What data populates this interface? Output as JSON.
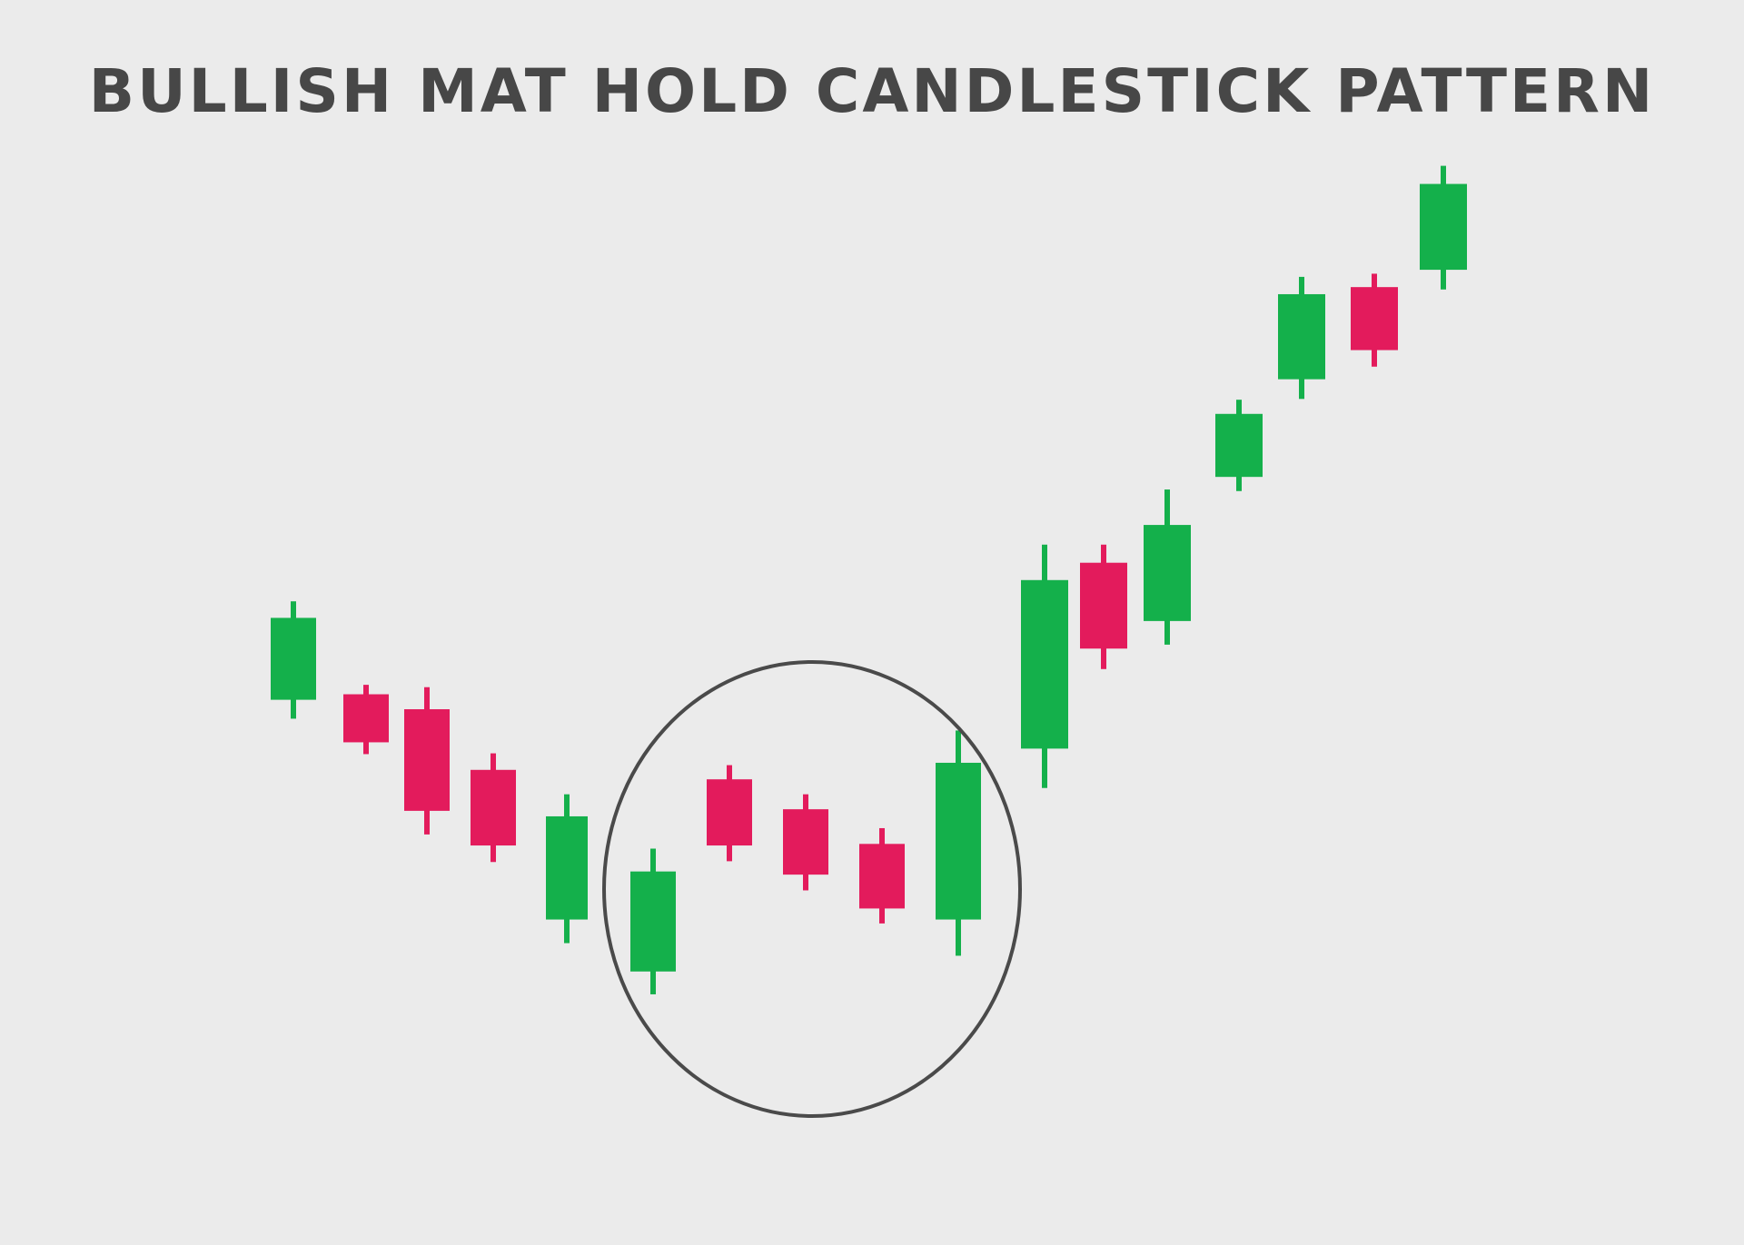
{
  "chart_data": {
    "type": "candlestick",
    "title": "BULLISH MAT HOLD CANDLESTICK PATTERN",
    "colors": {
      "bullish": "#14b04b",
      "bearish": "#e31b5c",
      "highlight": "#4a4a4a",
      "background": "#ebebeb"
    },
    "candles": [
      {
        "direction": "bullish",
        "open": 31.9,
        "close": 42.3,
        "high": 44.4,
        "low": 29.5
      },
      {
        "direction": "bearish",
        "open": 32.6,
        "close": 26.5,
        "high": 33.8,
        "low": 25.0
      },
      {
        "direction": "bearish",
        "open": 30.7,
        "close": 17.8,
        "high": 33.5,
        "low": 14.8
      },
      {
        "direction": "bearish",
        "open": 23.0,
        "close": 13.4,
        "high": 25.1,
        "low": 11.3
      },
      {
        "direction": "bullish",
        "open": 4.0,
        "close": 17.1,
        "high": 19.9,
        "low": 1.0
      },
      {
        "direction": "bullish",
        "open": -2.6,
        "close": 10.1,
        "high": 13.0,
        "low": -5.5
      },
      {
        "direction": "bearish",
        "open": 21.8,
        "close": 13.4,
        "high": 23.6,
        "low": 11.4
      },
      {
        "direction": "bearish",
        "open": 18.0,
        "close": 9.7,
        "high": 19.9,
        "low": 7.7
      },
      {
        "direction": "bearish",
        "open": 13.6,
        "close": 5.4,
        "high": 15.6,
        "low": 3.5
      },
      {
        "direction": "bullish",
        "open": 4.0,
        "close": 23.9,
        "high": 28.0,
        "low": -0.6
      },
      {
        "direction": "bullish",
        "open": 25.7,
        "close": 47.1,
        "high": 51.6,
        "low": 20.7
      },
      {
        "direction": "bearish",
        "open": 49.3,
        "close": 38.4,
        "high": 51.6,
        "low": 35.8
      },
      {
        "direction": "bullish",
        "open": 41.9,
        "close": 54.1,
        "high": 58.6,
        "low": 38.9
      },
      {
        "direction": "bullish",
        "open": 60.2,
        "close": 68.2,
        "high": 70.0,
        "low": 58.4
      },
      {
        "direction": "bullish",
        "open": 72.6,
        "close": 83.4,
        "high": 85.6,
        "low": 70.1
      },
      {
        "direction": "bearish",
        "open": 84.3,
        "close": 76.3,
        "high": 86.0,
        "low": 74.2
      },
      {
        "direction": "bullish",
        "open": 86.5,
        "close": 97.4,
        "high": 99.7,
        "low": 84.0
      }
    ],
    "highlight": {
      "shape": "ellipse",
      "from_candle": 5,
      "to_candle": 9
    },
    "ylim": [
      -13,
      100
    ]
  }
}
